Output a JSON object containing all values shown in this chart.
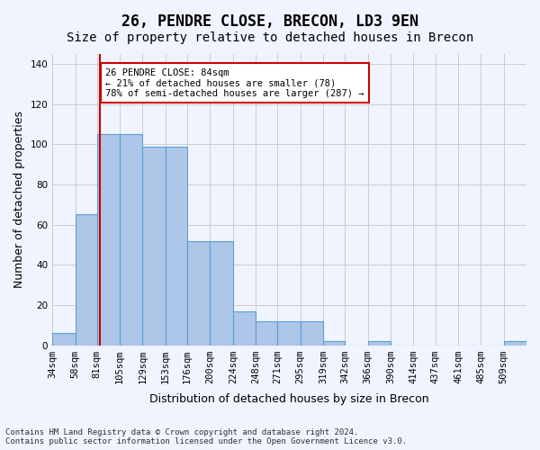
{
  "title": "26, PENDRE CLOSE, BRECON, LD3 9EN",
  "subtitle": "Size of property relative to detached houses in Brecon",
  "xlabel": "Distribution of detached houses by size in Brecon",
  "ylabel": "Number of detached properties",
  "bar_heights": [
    6,
    65,
    105,
    105,
    99,
    99,
    52,
    52,
    17,
    12,
    12,
    12,
    2,
    0,
    2,
    0,
    0,
    0,
    0,
    0,
    2
  ],
  "bin_edges": [
    34,
    58,
    81,
    105,
    129,
    153,
    176,
    200,
    224,
    248,
    271,
    295,
    319,
    342,
    366,
    390,
    414,
    437,
    461,
    485,
    509,
    533
  ],
  "tick_labels": [
    "34sqm",
    "58sqm",
    "81sqm",
    "105sqm",
    "129sqm",
    "153sqm",
    "176sqm",
    "200sqm",
    "224sqm",
    "248sqm",
    "271sqm",
    "295sqm",
    "319sqm",
    "342sqm",
    "366sqm",
    "390sqm",
    "414sqm",
    "437sqm",
    "461sqm",
    "485sqm",
    "509sqm"
  ],
  "tick_positions": [
    34,
    58,
    81,
    105,
    129,
    153,
    176,
    200,
    224,
    248,
    271,
    295,
    319,
    342,
    366,
    390,
    414,
    437,
    461,
    485,
    509
  ],
  "bar_color": "#aec6e8",
  "bar_edge_color": "#5a9fd4",
  "red_line_x": 84,
  "ylim": [
    0,
    145
  ],
  "yticks": [
    0,
    20,
    40,
    60,
    80,
    100,
    120,
    140
  ],
  "annotation_text": "26 PENDRE CLOSE: 84sqm\n← 21% of detached houses are smaller (78)\n78% of semi-detached houses are larger (287) →",
  "annotation_box_color": "#ffffff",
  "annotation_box_edge_color": "#cc0000",
  "background_color": "#f0f4ff",
  "grid_color": "#cccccc",
  "footer_text": "Contains HM Land Registry data © Crown copyright and database right 2024.\nContains public sector information licensed under the Open Government Licence v3.0.",
  "title_fontsize": 12,
  "subtitle_fontsize": 10,
  "axis_label_fontsize": 9,
  "tick_fontsize": 7.5
}
